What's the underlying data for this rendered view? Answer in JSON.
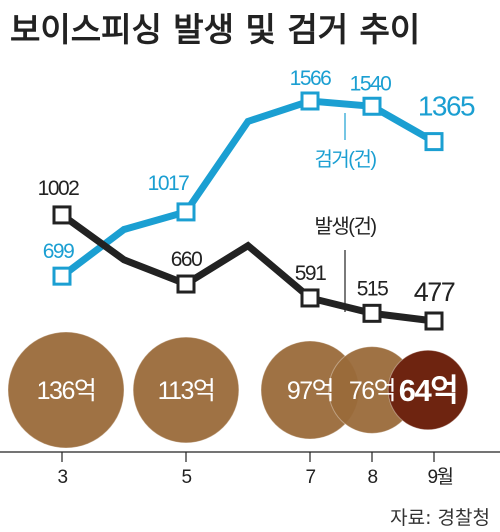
{
  "chart_data": {
    "type": "line",
    "title": "보이스피싱 발생 및 검거 추이",
    "source": "자료: 경찰청",
    "x_ticks": [
      {
        "label": "3",
        "month": 3
      },
      {
        "label": "5",
        "month": 5
      },
      {
        "label": "7",
        "month": 7
      },
      {
        "label": "8",
        "month": 8
      },
      {
        "label": "9월",
        "month": 9
      }
    ],
    "series": [
      {
        "name": "검거(건)",
        "color": "#1b9fd2",
        "points": [
          {
            "month": 3,
            "value": 699,
            "label": "699",
            "marker": true
          },
          {
            "month": 4,
            "value": 930,
            "label": null,
            "marker": false
          },
          {
            "month": 5,
            "value": 1017,
            "label": "1017",
            "marker": true
          },
          {
            "month": 6,
            "value": 1465,
            "label": null,
            "marker": false
          },
          {
            "month": 7,
            "value": 1566,
            "label": "1566",
            "marker": true
          },
          {
            "month": 8,
            "value": 1540,
            "label": "1540",
            "marker": true
          },
          {
            "month": 9,
            "value": 1365,
            "label": "1365",
            "marker": true
          }
        ]
      },
      {
        "name": "발생(건)",
        "color": "#222222",
        "points": [
          {
            "month": 3,
            "value": 1002,
            "label": "1002",
            "marker": true
          },
          {
            "month": 4,
            "value": 780,
            "label": null,
            "marker": false
          },
          {
            "month": 5,
            "value": 660,
            "label": "660",
            "marker": true
          },
          {
            "month": 6,
            "value": 850,
            "label": null,
            "marker": false
          },
          {
            "month": 7,
            "value": 591,
            "label": "591",
            "marker": true
          },
          {
            "month": 8,
            "value": 515,
            "label": "515",
            "marker": true
          },
          {
            "month": 9,
            "value": 477,
            "label": "477",
            "marker": true
          }
        ]
      }
    ],
    "damage_amount": {
      "unit": "억",
      "items": [
        {
          "month": 3,
          "value": 136,
          "label": "136억"
        },
        {
          "month": 5,
          "value": 113,
          "label": "113억"
        },
        {
          "month": 7,
          "value": 97,
          "label": "97억"
        },
        {
          "month": 8,
          "value": 76,
          "label": "76억"
        },
        {
          "month": 9,
          "value": 64,
          "label": "64억",
          "highlight": true
        }
      ],
      "color": "#9a6a3a",
      "highlight_color": "#6e2410"
    }
  }
}
